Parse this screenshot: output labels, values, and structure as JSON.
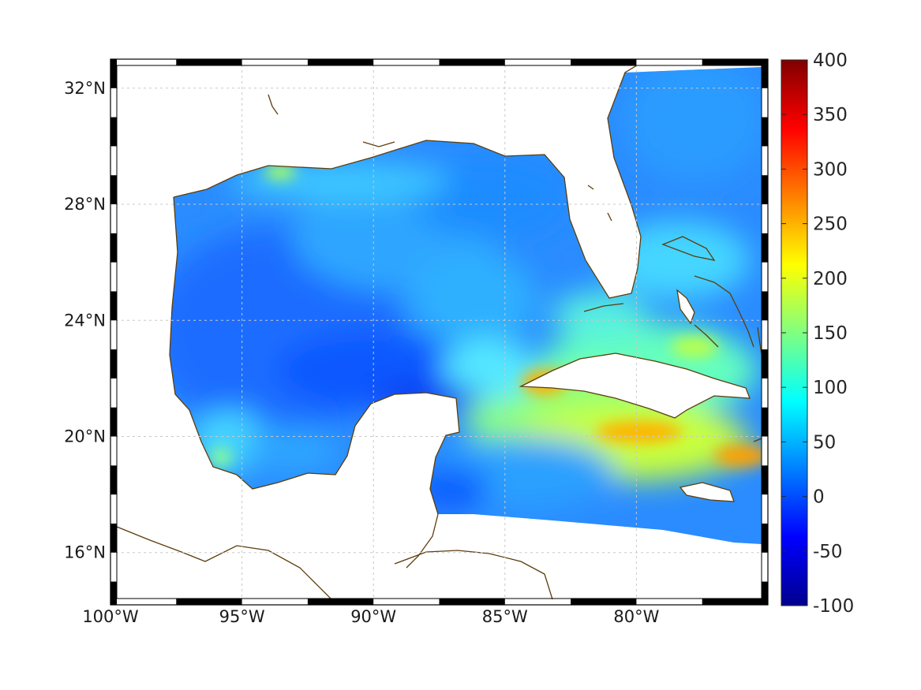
{
  "map": {
    "lon_range": [
      -100,
      -75
    ],
    "lat_range": [
      14.2,
      33
    ],
    "lat_labels": [
      {
        "value": 32,
        "text": "32°N"
      },
      {
        "value": 28,
        "text": "28°N"
      },
      {
        "value": 24,
        "text": "24°N"
      },
      {
        "value": 20,
        "text": "20°N"
      },
      {
        "value": 16,
        "text": "16°N"
      }
    ],
    "lon_labels": [
      {
        "value": -100,
        "text": "100°W"
      },
      {
        "value": -95,
        "text": "95°W"
      },
      {
        "value": -90,
        "text": "90°W"
      },
      {
        "value": -85,
        "text": "85°W"
      },
      {
        "value": -80,
        "text": "80°W"
      }
    ],
    "grid": true,
    "frame_style": "black-white checker border",
    "coastline_color": "#5c3d0a",
    "land_color": "#ffffff"
  },
  "colorbar": {
    "placement": "right",
    "colormap": "jet",
    "min": -100,
    "max": 400,
    "ticks": [
      "400",
      "350",
      "300",
      "250",
      "200",
      "150",
      "100",
      "50",
      "0",
      "-50",
      "-100"
    ]
  },
  "field_regions": [
    {
      "area": "western Gulf of Mexico",
      "value": 40
    },
    {
      "area": "central Gulf of Mexico",
      "value": 45
    },
    {
      "area": "northern Gulf shelf",
      "value": 75
    },
    {
      "area": "Texas coast near 94°W 29.5°N",
      "value": 140
    },
    {
      "area": "Bay of Campeche",
      "value": 60
    },
    {
      "area": "Atlantic off Florida/Georgia",
      "value": 60
    },
    {
      "area": "Straits of Florida",
      "value": 120
    },
    {
      "area": "Yucatan Channel",
      "value": 30
    },
    {
      "area": "north of Cuba",
      "value": 140
    },
    {
      "area": "western Cuba near 83°W 22°N",
      "value": 230
    },
    {
      "area": "Cayman / south of Cuba near 80°W 20.3°N",
      "value": 210
    },
    {
      "area": "Windward Passage near 76°W 19.5°N",
      "value": 240
    },
    {
      "area": "western Caribbean",
      "value": 40
    }
  ]
}
